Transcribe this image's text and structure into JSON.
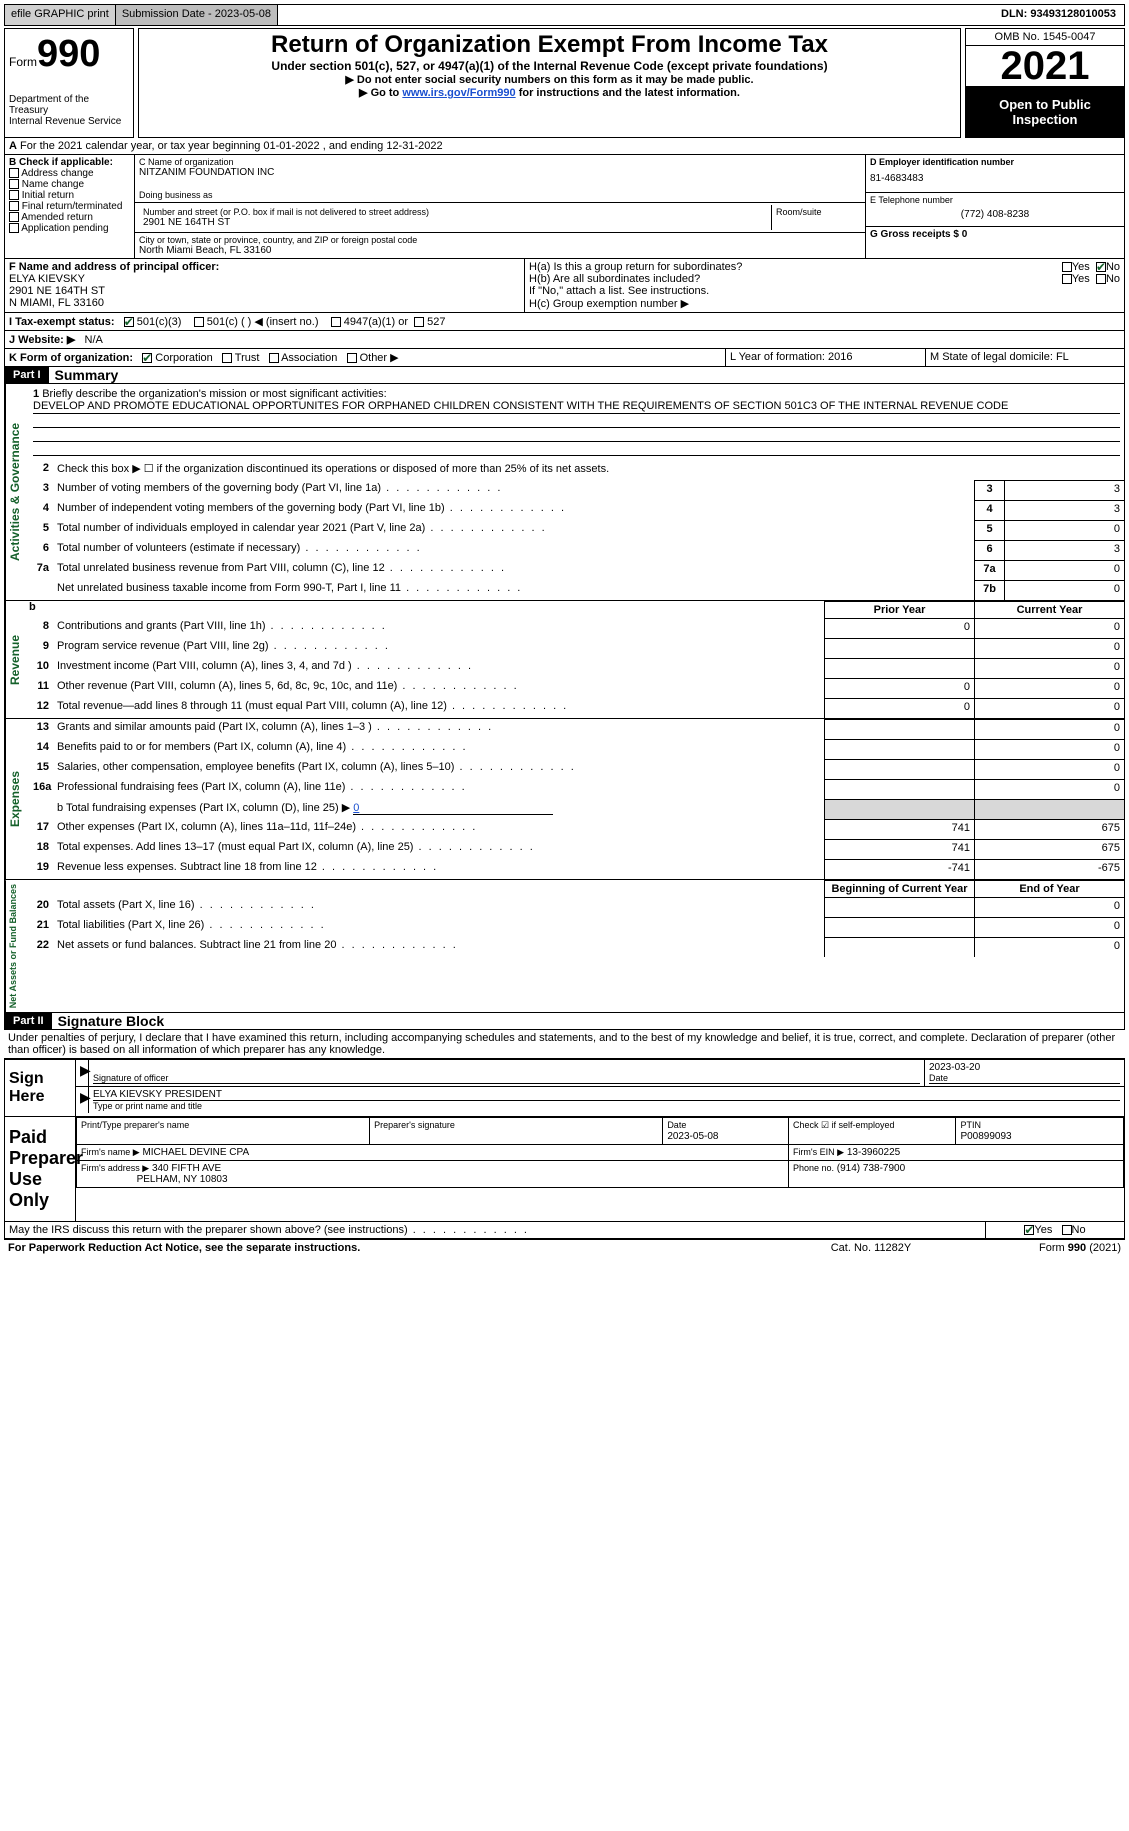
{
  "topbar": {
    "efile": "efile GRAPHIC print",
    "submission_label": "Submission Date - 2023-05-08",
    "dln_label": "DLN: 93493128010053"
  },
  "header": {
    "form_word": "Form",
    "form_num": "990",
    "title": "Return of Organization Exempt From Income Tax",
    "subtitle": "Under section 501(c), 527, or 4947(a)(1) of the Internal Revenue Code (except private foundations)",
    "note1": "▶ Do not enter social security numbers on this form as it may be made public.",
    "note2_pre": "▶ Go to ",
    "note2_link": "www.irs.gov/Form990",
    "note2_post": " for instructions and the latest information.",
    "dept": "Department of the Treasury\nInternal Revenue Service",
    "omb": "OMB No. 1545-0047",
    "year": "2021",
    "open": "Open to Public Inspection"
  },
  "row_a": {
    "text": "For the 2021 calendar year, or tax year beginning 01-01-2022    , and ending 12-31-2022",
    "prefix": "A"
  },
  "section_b": {
    "label": "B Check if applicable:",
    "opts": [
      "Address change",
      "Name change",
      "Initial return",
      "Final return/terminated",
      "Amended return",
      "Application pending"
    ]
  },
  "section_c": {
    "name_label": "C Name of organization",
    "name": "NITZANIM FOUNDATION INC",
    "dba_label": "Doing business as",
    "addr_label": "Number and street (or P.O. box if mail is not delivered to street address)",
    "room_label": "Room/suite",
    "addr": "2901 NE 164TH ST",
    "city_label": "City or town, state or province, country, and ZIP or foreign postal code",
    "city": "North Miami Beach, FL   33160"
  },
  "section_d": {
    "ein_label": "D Employer identification number",
    "ein": "81-4683483",
    "phone_label": "E Telephone number",
    "phone": "(772) 408-8238",
    "gross_label": "G Gross receipts $ 0"
  },
  "section_f": {
    "label": "F  Name and address of principal officer:",
    "name": "ELYA KIEVSKY",
    "addr1": "2901 NE 164TH ST",
    "addr2": "N MIAMI, FL  33160"
  },
  "section_h": {
    "ha": "H(a)  Is this a group return for subordinates?",
    "hb": "H(b)  Are all subordinates included?",
    "hb_note": "If \"No,\" attach a list. See instructions.",
    "hc": "H(c)  Group exemption number ▶",
    "yes": "Yes",
    "no": "No"
  },
  "section_i": {
    "label": "I     Tax-exempt status:",
    "opt1": "501(c)(3)",
    "opt2": "501(c) (   ) ◀ (insert no.)",
    "opt3": "4947(a)(1) or",
    "opt4": "527"
  },
  "section_j": {
    "label": "J    Website: ▶",
    "val": "N/A"
  },
  "section_k": {
    "label": "K Form of organization:",
    "opts": [
      "Corporation",
      "Trust",
      "Association",
      "Other ▶"
    ],
    "l_label": "L Year of formation: 2016",
    "m_label": "M State of legal domicile: FL"
  },
  "part1": {
    "hdr": "Part I",
    "title": "Summary",
    "line1_label": "Briefly describe the organization's mission or most significant activities:",
    "line1_text": "DEVELOP AND PROMOTE EDUCATIONAL OPPORTUNITES FOR ORPHANED CHILDREN CONSISTENT WITH THE REQUIREMENTS OF SECTION 501C3 OF THE INTERNAL REVENUE CODE",
    "line2": "Check this box ▶ ☐  if the organization discontinued its operations or disposed of more than 25% of its net assets.",
    "lines_gov": [
      {
        "n": "3",
        "d": "Number of voting members of the governing body (Part VI, line 1a)",
        "b": "3",
        "v": "3"
      },
      {
        "n": "4",
        "d": "Number of independent voting members of the governing body (Part VI, line 1b)",
        "b": "4",
        "v": "3"
      },
      {
        "n": "5",
        "d": "Total number of individuals employed in calendar year 2021 (Part V, line 2a)",
        "b": "5",
        "v": "0"
      },
      {
        "n": "6",
        "d": "Total number of volunteers (estimate if necessary)",
        "b": "6",
        "v": "3"
      },
      {
        "n": "7a",
        "d": "Total unrelated business revenue from Part VIII, column (C), line 12",
        "b": "7a",
        "v": "0"
      },
      {
        "n": "",
        "d": "Net unrelated business taxable income from Form 990-T, Part I, line 11",
        "b": "7b",
        "v": "0"
      }
    ],
    "col_prior": "Prior Year",
    "col_current": "Current Year",
    "lines_rev": [
      {
        "n": "8",
        "d": "Contributions and grants (Part VIII, line 1h)",
        "p": "0",
        "c": "0"
      },
      {
        "n": "9",
        "d": "Program service revenue (Part VIII, line 2g)",
        "p": "",
        "c": "0"
      },
      {
        "n": "10",
        "d": "Investment income (Part VIII, column (A), lines 3, 4, and 7d )",
        "p": "",
        "c": "0"
      },
      {
        "n": "11",
        "d": "Other revenue (Part VIII, column (A), lines 5, 6d, 8c, 9c, 10c, and 11e)",
        "p": "0",
        "c": "0"
      },
      {
        "n": "12",
        "d": "Total revenue—add lines 8 through 11 (must equal Part VIII, column (A), line 12)",
        "p": "0",
        "c": "0"
      }
    ],
    "lines_exp": [
      {
        "n": "13",
        "d": "Grants and similar amounts paid (Part IX, column (A), lines 1–3 )",
        "p": "",
        "c": "0"
      },
      {
        "n": "14",
        "d": "Benefits paid to or for members (Part IX, column (A), line 4)",
        "p": "",
        "c": "0"
      },
      {
        "n": "15",
        "d": "Salaries, other compensation, employee benefits (Part IX, column (A), lines 5–10)",
        "p": "",
        "c": "0"
      },
      {
        "n": "16a",
        "d": "Professional fundraising fees (Part IX, column (A), line 11e)",
        "p": "",
        "c": "0"
      }
    ],
    "line16b_pre": "b   Total fundraising expenses (Part IX, column (D), line 25) ▶",
    "line16b_val": "0",
    "lines_exp2": [
      {
        "n": "17",
        "d": "Other expenses (Part IX, column (A), lines 11a–11d, 11f–24e)",
        "p": "741",
        "c": "675"
      },
      {
        "n": "18",
        "d": "Total expenses. Add lines 13–17 (must equal Part IX, column (A), line 25)",
        "p": "741",
        "c": "675"
      },
      {
        "n": "19",
        "d": "Revenue less expenses. Subtract line 18 from line 12",
        "p": "-741",
        "c": "-675"
      }
    ],
    "col_begin": "Beginning of Current Year",
    "col_end": "End of Year",
    "lines_net": [
      {
        "n": "20",
        "d": "Total assets (Part X, line 16)",
        "p": "",
        "c": "0"
      },
      {
        "n": "21",
        "d": "Total liabilities (Part X, line 26)",
        "p": "",
        "c": "0"
      },
      {
        "n": "22",
        "d": "Net assets or fund balances. Subtract line 21 from line 20",
        "p": "",
        "c": "0"
      }
    ],
    "vlabels": {
      "gov": "Activities & Governance",
      "rev": "Revenue",
      "exp": "Expenses",
      "net": "Net Assets or Fund Balances"
    }
  },
  "part2": {
    "hdr": "Part II",
    "title": "Signature Block",
    "decl": "Under penalties of perjury, I declare that I have examined this return, including accompanying schedules and statements, and to the best of my knowledge and belief, it is true, correct, and complete. Declaration of preparer (other than officer) is based on all information of which preparer has any knowledge.",
    "sign_here": "Sign Here",
    "sig_officer": "Signature of officer",
    "sig_date": "2023-03-20",
    "date_label": "Date",
    "name_title": "ELYA KIEVSKY PRESIDENT",
    "name_title_label": "Type or print name and title",
    "paid": "Paid Preparer Use Only",
    "prep_name_label": "Print/Type preparer's name",
    "prep_sig_label": "Preparer's signature",
    "prep_date_label": "Date",
    "prep_date": "2023-05-08",
    "check_label": "Check ☑ if self-employed",
    "ptin_label": "PTIN",
    "ptin": "P00899093",
    "firm_name_label": "Firm's name    ▶",
    "firm_name": "MICHAEL DEVINE CPA",
    "firm_ein_label": "Firm's EIN ▶",
    "firm_ein": "13-3960225",
    "firm_addr_label": "Firm's address ▶",
    "firm_addr1": "340 FIFTH AVE",
    "firm_addr2": "PELHAM, NY  10803",
    "firm_phone_label": "Phone no.",
    "firm_phone": "(914) 738-7900",
    "discuss": "May the IRS discuss this return with the preparer shown above? (see instructions)"
  },
  "footer": {
    "notice": "For Paperwork Reduction Act Notice, see the separate instructions.",
    "cat": "Cat. No. 11282Y",
    "form": "Form 990 (2021)"
  }
}
